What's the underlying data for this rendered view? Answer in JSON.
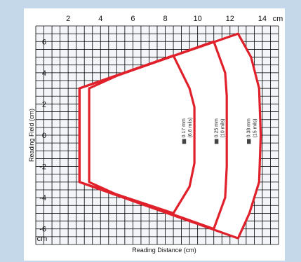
{
  "chart_data": {
    "type": "area",
    "title": "",
    "xlabel": "Reading Distance (cm)",
    "ylabel": "Reading Field (cm)",
    "x_unit": "cm",
    "y_unit": "cm",
    "xlim": [
      0,
      15
    ],
    "ylim": [
      -7,
      7
    ],
    "x_ticks": [
      "2",
      "4",
      "6",
      "8",
      "10",
      "12",
      "14"
    ],
    "y_ticks": [
      "6",
      "4",
      "2",
      "0",
      "-2",
      "-4",
      "-6"
    ],
    "grid": true,
    "line_color": "#e0202a",
    "zones": [
      {
        "name": "0.17 mm",
        "sub": "(6.6 mils)",
        "points": [
          [
            2.7,
            3.0
          ],
          [
            2.7,
            -3.0
          ],
          [
            8.5,
            -5.0
          ],
          [
            9.5,
            -3.3
          ],
          [
            9.8,
            -1.8
          ],
          [
            9.8,
            1.8
          ],
          [
            9.5,
            3.0
          ],
          [
            8.5,
            5.1
          ]
        ]
      },
      {
        "name": "0.25 mm",
        "sub": "(10 mils)",
        "points": [
          [
            3.3,
            3.0
          ],
          [
            3.3,
            -3.0
          ],
          [
            5.0,
            -3.8
          ],
          [
            11.0,
            -6.0
          ],
          [
            11.7,
            -4.0
          ],
          [
            11.8,
            -2.0
          ],
          [
            11.8,
            2.5
          ],
          [
            11.7,
            4.0
          ],
          [
            11.0,
            6.0
          ],
          [
            5.0,
            3.8
          ]
        ]
      },
      {
        "name": "0.38 mm",
        "sub": "(15 mils)",
        "points": [
          [
            2.7,
            3.0
          ],
          [
            12.5,
            6.5
          ],
          [
            13.3,
            5.0
          ],
          [
            13.8,
            3.0
          ],
          [
            13.9,
            0.0
          ],
          [
            13.8,
            -3.0
          ],
          [
            13.2,
            -5.0
          ],
          [
            12.5,
            -6.6
          ],
          [
            2.7,
            -3.0
          ]
        ]
      }
    ]
  }
}
